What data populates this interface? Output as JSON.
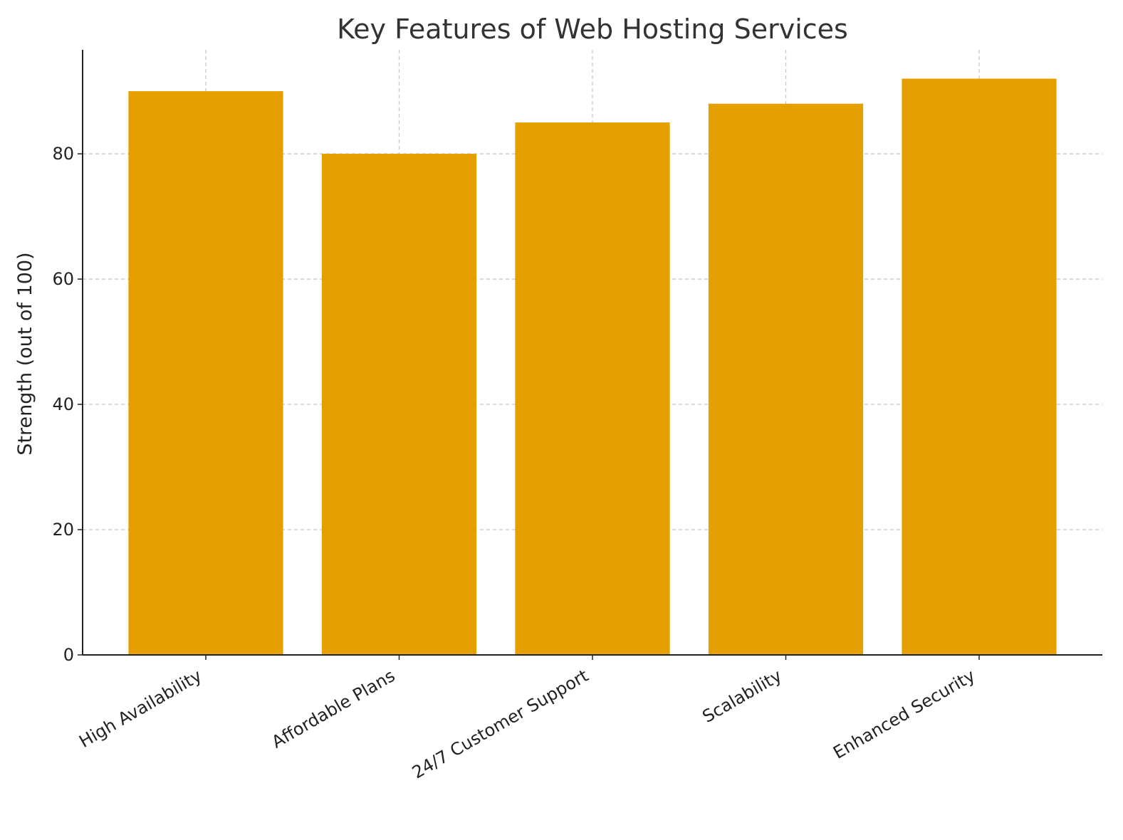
{
  "chart_data": {
    "type": "bar",
    "title": "Key Features of Web Hosting Services",
    "y_label": "Strength (out of 100)",
    "categories": [
      "High Availability",
      "Affordable Plans",
      "24/7 Customer Support",
      "Scalability",
      "Enhanced Security"
    ],
    "values": [
      90,
      80,
      85,
      88,
      92
    ],
    "color": "#e5a000",
    "ylim": [
      0,
      96.6
    ],
    "yticks": [
      0,
      20,
      40,
      60,
      80
    ],
    "grid": true
  }
}
